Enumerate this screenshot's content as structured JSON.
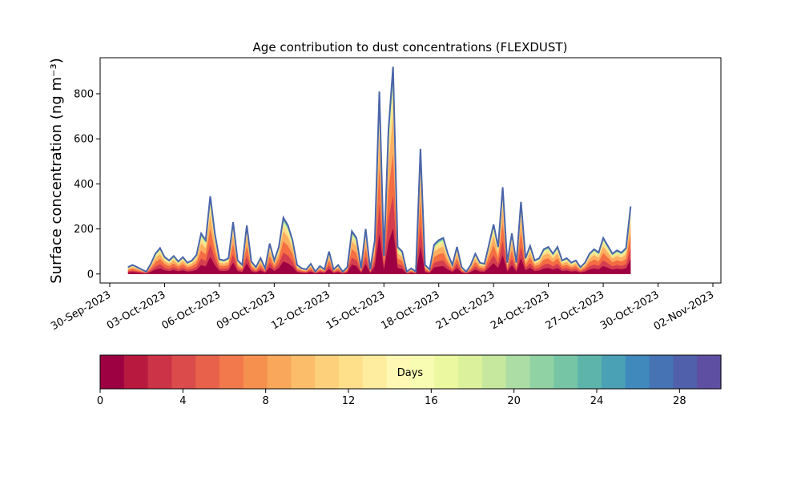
{
  "chart_data": {
    "type": "area",
    "title": "Age contribution to dust concentrations (FLEXDUST)",
    "ylabel": "Surface concentration (ng m⁻³)",
    "xlabel": "",
    "ylim": [
      -40,
      960
    ],
    "xlim": [
      "2023-09-30T00:00",
      "2023-11-02T00:00"
    ],
    "y_ticks": [
      0,
      200,
      400,
      600,
      800
    ],
    "x_tick_labels": [
      "30-Sep-2023",
      "03-Oct-2023",
      "06-Oct-2023",
      "09-Oct-2023",
      "12-Oct-2023",
      "15-Oct-2023",
      "18-Oct-2023",
      "21-Oct-2023",
      "24-Oct-2023",
      "27-Oct-2023",
      "30-Oct-2023",
      "02-Nov-2023"
    ],
    "stacked_by": "age (days)",
    "total_series": [
      [
        "2023-10-01T00:00",
        30
      ],
      [
        "2023-10-01T06:00",
        40
      ],
      [
        "2023-10-01T12:00",
        30
      ],
      [
        "2023-10-01T18:00",
        20
      ],
      [
        "2023-10-02T00:00",
        10
      ],
      [
        "2023-10-02T06:00",
        45
      ],
      [
        "2023-10-02T12:00",
        90
      ],
      [
        "2023-10-02T18:00",
        115
      ],
      [
        "2023-10-03T00:00",
        75
      ],
      [
        "2023-10-03T06:00",
        60
      ],
      [
        "2023-10-03T12:00",
        80
      ],
      [
        "2023-10-03T18:00",
        55
      ],
      [
        "2023-10-04T00:00",
        75
      ],
      [
        "2023-10-04T06:00",
        50
      ],
      [
        "2023-10-04T12:00",
        60
      ],
      [
        "2023-10-04T18:00",
        85
      ],
      [
        "2023-10-05T00:00",
        180
      ],
      [
        "2023-10-05T06:00",
        150
      ],
      [
        "2023-10-05T12:00",
        345
      ],
      [
        "2023-10-05T18:00",
        180
      ],
      [
        "2023-10-06T00:00",
        65
      ],
      [
        "2023-10-06T06:00",
        60
      ],
      [
        "2023-10-06T12:00",
        70
      ],
      [
        "2023-10-06T18:00",
        230
      ],
      [
        "2023-10-07T00:00",
        60
      ],
      [
        "2023-10-07T06:00",
        40
      ],
      [
        "2023-10-07T12:00",
        215
      ],
      [
        "2023-10-07T18:00",
        55
      ],
      [
        "2023-10-08T00:00",
        30
      ],
      [
        "2023-10-08T06:00",
        70
      ],
      [
        "2023-10-08T12:00",
        25
      ],
      [
        "2023-10-08T18:00",
        135
      ],
      [
        "2023-10-09T00:00",
        60
      ],
      [
        "2023-10-09T06:00",
        120
      ],
      [
        "2023-10-09T12:00",
        250
      ],
      [
        "2023-10-09T18:00",
        215
      ],
      [
        "2023-10-10T00:00",
        150
      ],
      [
        "2023-10-10T06:00",
        40
      ],
      [
        "2023-10-10T12:00",
        25
      ],
      [
        "2023-10-10T18:00",
        20
      ],
      [
        "2023-10-11T00:00",
        45
      ],
      [
        "2023-10-11T06:00",
        10
      ],
      [
        "2023-10-11T12:00",
        35
      ],
      [
        "2023-10-11T18:00",
        20
      ],
      [
        "2023-10-12T00:00",
        100
      ],
      [
        "2023-10-12T06:00",
        20
      ],
      [
        "2023-10-12T12:00",
        40
      ],
      [
        "2023-10-12T18:00",
        10
      ],
      [
        "2023-10-13T00:00",
        30
      ],
      [
        "2023-10-13T06:00",
        190
      ],
      [
        "2023-10-13T12:00",
        160
      ],
      [
        "2023-10-13T18:00",
        25
      ],
      [
        "2023-10-14T00:00",
        200
      ],
      [
        "2023-10-14T06:00",
        20
      ],
      [
        "2023-10-14T12:00",
        150
      ],
      [
        "2023-10-14T18:00",
        810
      ],
      [
        "2023-10-15T00:00",
        80
      ],
      [
        "2023-10-15T06:00",
        640
      ],
      [
        "2023-10-15T12:00",
        920
      ],
      [
        "2023-10-15T18:00",
        120
      ],
      [
        "2023-10-16T00:00",
        100
      ],
      [
        "2023-10-16T06:00",
        10
      ],
      [
        "2023-10-16T12:00",
        25
      ],
      [
        "2023-10-16T18:00",
        10
      ],
      [
        "2023-10-17T00:00",
        555
      ],
      [
        "2023-10-17T06:00",
        40
      ],
      [
        "2023-10-17T12:00",
        20
      ],
      [
        "2023-10-17T18:00",
        130
      ],
      [
        "2023-10-18T00:00",
        150
      ],
      [
        "2023-10-18T06:00",
        160
      ],
      [
        "2023-10-18T12:00",
        90
      ],
      [
        "2023-10-18T18:00",
        40
      ],
      [
        "2023-10-19T00:00",
        120
      ],
      [
        "2023-10-19T06:00",
        30
      ],
      [
        "2023-10-19T12:00",
        10
      ],
      [
        "2023-10-19T18:00",
        40
      ],
      [
        "2023-10-20T00:00",
        90
      ],
      [
        "2023-10-20T06:00",
        50
      ],
      [
        "2023-10-20T12:00",
        45
      ],
      [
        "2023-10-20T18:00",
        130
      ],
      [
        "2023-10-21T00:00",
        220
      ],
      [
        "2023-10-21T06:00",
        120
      ],
      [
        "2023-10-21T12:00",
        385
      ],
      [
        "2023-10-21T18:00",
        50
      ],
      [
        "2023-10-22T00:00",
        180
      ],
      [
        "2023-10-22T06:00",
        50
      ],
      [
        "2023-10-22T12:00",
        320
      ],
      [
        "2023-10-22T18:00",
        70
      ],
      [
        "2023-10-23T00:00",
        125
      ],
      [
        "2023-10-23T06:00",
        60
      ],
      [
        "2023-10-23T12:00",
        70
      ],
      [
        "2023-10-23T18:00",
        110
      ],
      [
        "2023-10-24T00:00",
        120
      ],
      [
        "2023-10-24T06:00",
        90
      ],
      [
        "2023-10-24T12:00",
        120
      ],
      [
        "2023-10-24T18:00",
        60
      ],
      [
        "2023-10-25T00:00",
        70
      ],
      [
        "2023-10-25T06:00",
        50
      ],
      [
        "2023-10-25T12:00",
        60
      ],
      [
        "2023-10-25T18:00",
        30
      ],
      [
        "2023-10-26T00:00",
        50
      ],
      [
        "2023-10-26T06:00",
        90
      ],
      [
        "2023-10-26T12:00",
        110
      ],
      [
        "2023-10-26T18:00",
        95
      ],
      [
        "2023-10-27T00:00",
        160
      ],
      [
        "2023-10-27T06:00",
        125
      ],
      [
        "2023-10-27T12:00",
        90
      ],
      [
        "2023-10-27T18:00",
        105
      ],
      [
        "2023-10-28T00:00",
        95
      ],
      [
        "2023-10-28T06:00",
        115
      ],
      [
        "2023-10-28T12:00",
        300
      ]
    ],
    "colorbar": {
      "label": "Days",
      "range": [
        0,
        30
      ],
      "tick_values": [
        0,
        4,
        8,
        12,
        16,
        20,
        24,
        28
      ],
      "colors": [
        "#9e0142",
        "#b8193f",
        "#cc3347",
        "#db4b4b",
        "#e8624b",
        "#f1794b",
        "#f6904f",
        "#f9a75a",
        "#fbbd69",
        "#fdd07b",
        "#fee08b",
        "#feec9f",
        "#fef8b4",
        "#f8fbb2",
        "#ecf8a0",
        "#dbf19b",
        "#c5e79e",
        "#abdda4",
        "#91d2a4",
        "#76c6a5",
        "#5db4ab",
        "#4aa0b4",
        "#3f89bd",
        "#4673b3",
        "#5060aa",
        "#5e4fa2"
      ]
    }
  }
}
